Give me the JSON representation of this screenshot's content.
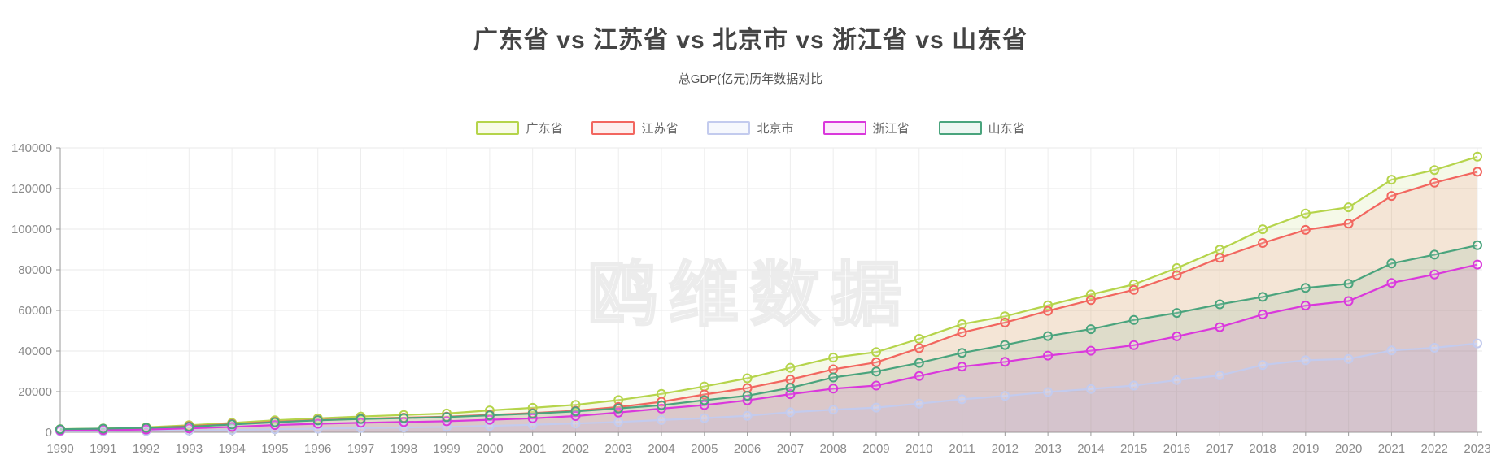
{
  "header": {
    "title": "广东省 vs 江苏省 vs 北京市 vs 浙江省 vs 山东省",
    "subtitle": "总GDP(亿元)历年数据对比"
  },
  "watermark": "鸥维数据",
  "legend": {
    "items": [
      {
        "label": "广东省",
        "color": "#b5d44b",
        "fill": "#f8fbe8"
      },
      {
        "label": "江苏省",
        "color": "#f2665f",
        "fill": "#fdeeed"
      },
      {
        "label": "北京市",
        "color": "#c3cbee",
        "fill": "#f6f8fd"
      },
      {
        "label": "浙江省",
        "color": "#da38dc",
        "fill": "#fbebfb"
      },
      {
        "label": "山东省",
        "color": "#4aa47d",
        "fill": "#edf6f2"
      }
    ]
  },
  "chart_data": {
    "type": "area",
    "title": "广东省 vs 江苏省 vs 北京市 vs 浙江省 vs 山东省",
    "subtitle": "总GDP(亿元)历年数据对比",
    "xlabel": "",
    "ylabel": "总GDP(亿元)",
    "ylim": [
      0,
      140000
    ],
    "y_ticks": [
      0,
      20000,
      40000,
      60000,
      80000,
      100000,
      120000,
      140000
    ],
    "grid": true,
    "legend_position": "top",
    "x": [
      "1990",
      "1991",
      "1992",
      "1993",
      "1994",
      "1995",
      "1996",
      "1997",
      "1998",
      "1999",
      "2000",
      "2001",
      "2002",
      "2003",
      "2004",
      "2005",
      "2006",
      "2007",
      "2008",
      "2009",
      "2010",
      "2011",
      "2012",
      "2013",
      "2014",
      "2015",
      "2016",
      "2017",
      "2018",
      "2019",
      "2020",
      "2021",
      "2022",
      "2023"
    ],
    "series": [
      {
        "name": "广东省",
        "color": "#b5d44b",
        "values": [
          1559,
          1893,
          2447,
          3469,
          4619,
          5933,
          6835,
          7775,
          8530,
          9251,
          10741,
          12039,
          13502,
          15845,
          18865,
          22557,
          26588,
          31777,
          36797,
          39483,
          46013,
          53246,
          57068,
          62475,
          67810,
          72813,
          80855,
          89879,
          99945,
          107671,
          110761,
          124370,
          129119,
          135673
        ]
      },
      {
        "name": "江苏省",
        "color": "#f2665f",
        "values": [
          1417,
          1601,
          2136,
          2998,
          4057,
          5155,
          6004,
          6680,
          7200,
          7698,
          8554,
          9457,
          10607,
          12443,
          15004,
          18599,
          21742,
          26018,
          30981,
          34457,
          41425,
          49110,
          54058,
          59753,
          65088,
          70116,
          77388,
          85870,
          93207,
          99632,
          102719,
          116364,
          122876,
          128222
        ]
      },
      {
        "name": "北京市",
        "color": "#c3cbee",
        "values": [
          501,
          599,
          709,
          886,
          1145,
          1508,
          1789,
          2077,
          2377,
          2679,
          3162,
          3711,
          4330,
          5024,
          6060,
          6970,
          8118,
          9847,
          11115,
          12153,
          14114,
          16252,
          17879,
          19801,
          21331,
          23015,
          25669,
          28015,
          33106,
          35445,
          36103,
          40270,
          41611,
          43761
        ]
      },
      {
        "name": "浙江省",
        "color": "#da38dc",
        "values": [
          904,
          1089,
          1375,
          1925,
          2689,
          3557,
          4188,
          4686,
          5052,
          5444,
          6141,
          6898,
          8003,
          9705,
          11648,
          13417,
          15718,
          18753,
          21462,
          22990,
          27722,
          32318,
          34665,
          37756,
          40173,
          42886,
          47251,
          51768,
          58003,
          62352,
          64613,
          73516,
          77715,
          82553
        ]
      },
      {
        "name": "山东省",
        "color": "#4aa47d",
        "values": [
          1511,
          1810,
          2196,
          2770,
          3845,
          4953,
          5884,
          6537,
          6990,
          7494,
          8338,
          9195,
          10276,
          11770,
          13308,
          15790,
          18017,
          21900,
          26988,
          29912,
          34145,
          39065,
          42957,
          47344,
          50775,
          55289,
          58763,
          63012,
          66649,
          71068,
          73129,
          83096,
          87435,
          92069
        ]
      }
    ]
  }
}
